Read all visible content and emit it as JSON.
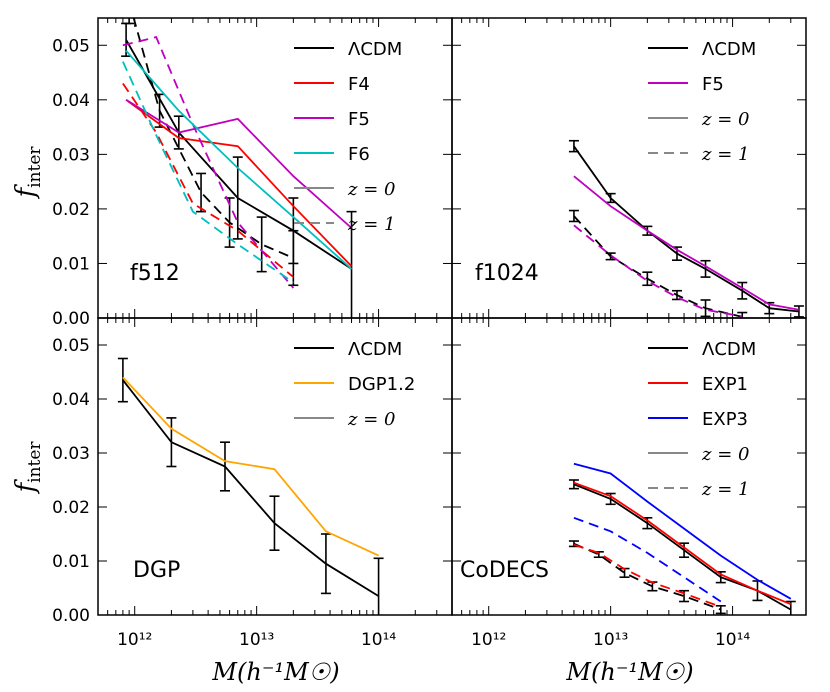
{
  "colors": {
    "LCDM": "#000000",
    "F4": "#ff0000",
    "F5": "#bf00bf",
    "F6": "#00bfbf",
    "DGP1.2": "#ffa500",
    "EXP1": "#ff0000",
    "EXP3": "#0000ff",
    "ref": "#888888"
  },
  "axes": {
    "ylabel": "f_inter",
    "ylabel_main": "f",
    "ylabel_sub": "inter",
    "xlabel": "M(h⁻¹M☉)",
    "yticks": [
      "0.00",
      "0.01",
      "0.02",
      "0.03",
      "0.04",
      "0.05"
    ],
    "xticks": [
      "10¹²",
      "10¹³",
      "10¹⁴"
    ]
  },
  "chart_data": [
    {
      "type": "line",
      "panel_label": "f512",
      "xscale": "log",
      "xlim": [
        500000000000.0,
        400000000000000.0
      ],
      "ylim": [
        0,
        0.055
      ],
      "legend_position": "top-right",
      "legend": [
        {
          "key": "LCDM",
          "label": "ΛCDM",
          "style": "solid"
        },
        {
          "key": "F4",
          "label": "F4",
          "style": "solid"
        },
        {
          "key": "F5",
          "label": "F5",
          "style": "solid"
        },
        {
          "key": "F6",
          "label": "F6",
          "style": "solid"
        },
        {
          "key": "ref",
          "label": "z = 0",
          "style": "solid",
          "math": true
        },
        {
          "key": "ref",
          "label": "z = 1",
          "style": "dashed",
          "math": true
        }
      ],
      "series": [
        {
          "name": "ΛCDM z=0",
          "key": "LCDM",
          "style": "solid",
          "x": [
            850000000000.0,
            2300000000000.0,
            7000000000000.0,
            20000000000000.0,
            60000000000000.0
          ],
          "y": [
            0.051,
            0.034,
            0.022,
            0.016,
            0.009
          ],
          "err": [
            0.003,
            0.003,
            0.0075,
            0.006,
            0.0105
          ]
        },
        {
          "name": "ΛCDM z=1",
          "key": "LCDM",
          "style": "dashed",
          "x": [
            900000000000.0,
            1600000000000.0,
            3500000000000.0,
            6000000000000.0,
            11000000000000.0,
            20000000000000.0
          ],
          "y": [
            0.058,
            0.038,
            0.023,
            0.0175,
            0.0135,
            0.011
          ],
          "err": [
            0.004,
            0.003,
            0.0035,
            0.0045,
            0.005,
            0.005
          ]
        },
        {
          "name": "F4 z=0",
          "key": "F4",
          "style": "solid",
          "x": [
            850000000000.0,
            2300000000000.0,
            7000000000000.0,
            20000000000000.0,
            60000000000000.0
          ],
          "y": [
            0.04,
            0.033,
            0.0315,
            0.0205,
            0.0095
          ]
        },
        {
          "name": "F4 z=1",
          "key": "F4",
          "style": "dashed",
          "x": [
            800000000000.0,
            1500000000000.0,
            3000000000000.0,
            7000000000000.0,
            20000000000000.0
          ],
          "y": [
            0.043,
            0.034,
            0.021,
            0.016,
            0.0075
          ]
        },
        {
          "name": "F5 z=0",
          "key": "F5",
          "style": "solid",
          "x": [
            850000000000.0,
            2300000000000.0,
            7000000000000.0,
            20000000000000.0,
            60000000000000.0
          ],
          "y": [
            0.04,
            0.034,
            0.0365,
            0.026,
            0.0165
          ]
        },
        {
          "name": "F5 z=1",
          "key": "F5",
          "style": "dashed",
          "x": [
            800000000000.0,
            1500000000000.0,
            3000000000000.0,
            7000000000000.0,
            20000000000000.0
          ],
          "y": [
            0.05,
            0.0515,
            0.0355,
            0.0175,
            0.0055
          ]
        },
        {
          "name": "F6 z=0",
          "key": "F6",
          "style": "solid",
          "x": [
            850000000000.0,
            2300000000000.0,
            7000000000000.0,
            20000000000000.0,
            60000000000000.0
          ],
          "y": [
            0.049,
            0.038,
            0.0275,
            0.0185,
            0.009
          ]
        },
        {
          "name": "F6 z=1",
          "key": "F6",
          "style": "dashed",
          "x": [
            800000000000.0,
            1500000000000.0,
            3000000000000.0,
            7000000000000.0,
            20000000000000.0
          ],
          "y": [
            0.047,
            0.0335,
            0.0195,
            0.0135,
            0.0065
          ]
        }
      ]
    },
    {
      "type": "line",
      "panel_label": "f1024",
      "xscale": "log",
      "xlim": [
        500000000000.0,
        400000000000000.0
      ],
      "ylim": [
        0,
        0.055
      ],
      "legend_position": "top-right",
      "legend": [
        {
          "key": "LCDM",
          "label": "ΛCDM",
          "style": "solid"
        },
        {
          "key": "F5",
          "label": "F5",
          "style": "solid"
        },
        {
          "key": "ref",
          "label": "z = 0",
          "style": "solid",
          "math": true
        },
        {
          "key": "ref",
          "label": "z = 1",
          "style": "dashed",
          "math": true
        }
      ],
      "series": [
        {
          "name": "ΛCDM z=0",
          "key": "LCDM",
          "style": "solid",
          "x": [
            5000000000000.0,
            10000000000000.0,
            20000000000000.0,
            35000000000000.0,
            60000000000000.0,
            120000000000000.0,
            200000000000000.0,
            350000000000000.0
          ],
          "y": [
            0.0315,
            0.022,
            0.016,
            0.0118,
            0.009,
            0.005,
            0.0018,
            0.0012
          ],
          "err": [
            0.001,
            0.0008,
            0.0008,
            0.0012,
            0.0015,
            0.0015,
            0.001,
            0.001
          ]
        },
        {
          "name": "ΛCDM z=1",
          "key": "LCDM",
          "style": "dashed",
          "x": [
            5000000000000.0,
            10000000000000.0,
            20000000000000.0,
            35000000000000.0,
            60000000000000.0,
            120000000000000.0
          ],
          "y": [
            0.0187,
            0.0113,
            0.0072,
            0.0042,
            0.0018,
            0.0002
          ],
          "err": [
            0.001,
            0.0006,
            0.0012,
            0.0008,
            0.0015,
            0.0008
          ]
        },
        {
          "name": "F5 z=0",
          "key": "F5",
          "style": "solid",
          "x": [
            5000000000000.0,
            10000000000000.0,
            20000000000000.0,
            35000000000000.0,
            60000000000000.0,
            120000000000000.0,
            200000000000000.0,
            350000000000000.0
          ],
          "y": [
            0.026,
            0.0205,
            0.016,
            0.0125,
            0.0095,
            0.0055,
            0.0025,
            0.0015
          ]
        },
        {
          "name": "F5 z=1",
          "key": "F5",
          "style": "dashed",
          "x": [
            5000000000000.0,
            10000000000000.0,
            20000000000000.0,
            35000000000000.0,
            60000000000000.0,
            120000000000000.0
          ],
          "y": [
            0.017,
            0.0115,
            0.0068,
            0.0038,
            0.0015,
            0.0003
          ]
        }
      ]
    },
    {
      "type": "line",
      "panel_label": "DGP",
      "xscale": "log",
      "xlim": [
        500000000000.0,
        400000000000000.0
      ],
      "ylim": [
        0,
        0.055
      ],
      "legend_position": "top-right",
      "legend": [
        {
          "key": "LCDM",
          "label": "ΛCDM",
          "style": "solid"
        },
        {
          "key": "DGP1.2",
          "label": "DGP1.2",
          "style": "solid"
        },
        {
          "key": "ref",
          "label": "z = 0",
          "style": "solid",
          "math": true
        }
      ],
      "series": [
        {
          "name": "ΛCDM z=0",
          "key": "LCDM",
          "style": "solid",
          "x": [
            800000000000.0,
            2000000000000.0,
            5500000000000.0,
            14000000000000.0,
            37000000000000.0,
            100000000000000.0
          ],
          "y": [
            0.0435,
            0.032,
            0.0275,
            0.017,
            0.0095,
            0.0035
          ],
          "err": [
            0.004,
            0.0045,
            0.0045,
            0.005,
            0.0055,
            0.007
          ]
        },
        {
          "name": "DGP1.2 z=0",
          "key": "DGP1.2",
          "style": "solid",
          "x": [
            800000000000.0,
            2000000000000.0,
            5500000000000.0,
            14000000000000.0,
            37000000000000.0,
            100000000000000.0
          ],
          "y": [
            0.044,
            0.0345,
            0.0285,
            0.027,
            0.0155,
            0.011
          ]
        }
      ]
    },
    {
      "type": "line",
      "panel_label": "CoDECS",
      "xscale": "log",
      "xlim": [
        500000000000.0,
        400000000000000.0
      ],
      "ylim": [
        0,
        0.055
      ],
      "legend_position": "top-right",
      "legend": [
        {
          "key": "LCDM",
          "label": "ΛCDM",
          "style": "solid"
        },
        {
          "key": "EXP1",
          "label": "EXP1",
          "style": "solid"
        },
        {
          "key": "EXP3",
          "label": "EXP3",
          "style": "solid"
        },
        {
          "key": "ref",
          "label": "z = 0",
          "style": "solid",
          "math": true
        },
        {
          "key": "ref",
          "label": "z = 1",
          "style": "dashed",
          "math": true
        }
      ],
      "series": [
        {
          "name": "ΛCDM z=0",
          "key": "LCDM",
          "style": "solid",
          "x": [
            5000000000000.0,
            10000000000000.0,
            20000000000000.0,
            40000000000000.0,
            80000000000000.0,
            160000000000000.0,
            300000000000000.0
          ],
          "y": [
            0.0242,
            0.0215,
            0.017,
            0.012,
            0.007,
            0.0045,
            0.001
          ],
          "err": [
            0.0008,
            0.001,
            0.001,
            0.0013,
            0.001,
            0.0018,
            0.0015
          ]
        },
        {
          "name": "ΛCDM z=1",
          "key": "LCDM",
          "style": "dashed",
          "x": [
            5000000000000.0,
            8000000000000.0,
            13000000000000.0,
            22000000000000.0,
            40000000000000.0,
            80000000000000.0
          ],
          "y": [
            0.0132,
            0.0112,
            0.0078,
            0.0053,
            0.0035,
            0.001
          ],
          "err": [
            0.0005,
            0.0005,
            0.0008,
            0.0008,
            0.001,
            0.0007
          ]
        },
        {
          "name": "EXP1 z=0",
          "key": "EXP1",
          "style": "solid",
          "x": [
            5000000000000.0,
            10000000000000.0,
            20000000000000.0,
            40000000000000.0,
            80000000000000.0,
            160000000000000.0,
            300000000000000.0
          ],
          "y": [
            0.0245,
            0.022,
            0.0175,
            0.0125,
            0.0075,
            0.0045,
            0.002
          ]
        },
        {
          "name": "EXP1 z=1",
          "key": "EXP1",
          "style": "dashed",
          "x": [
            5000000000000.0,
            8000000000000.0,
            13000000000000.0,
            22000000000000.0,
            40000000000000.0,
            80000000000000.0
          ],
          "y": [
            0.013,
            0.0115,
            0.0085,
            0.006,
            0.004,
            0.0015
          ]
        },
        {
          "name": "EXP3 z=0",
          "key": "EXP3",
          "style": "solid",
          "x": [
            5000000000000.0,
            10000000000000.0,
            20000000000000.0,
            40000000000000.0,
            80000000000000.0,
            160000000000000.0,
            300000000000000.0
          ],
          "y": [
            0.028,
            0.0262,
            0.021,
            0.016,
            0.011,
            0.0065,
            0.003
          ]
        },
        {
          "name": "EXP3 z=1",
          "key": "EXP3",
          "style": "dashed",
          "x": [
            5000000000000.0,
            10000000000000.0,
            20000000000000.0,
            40000000000000.0,
            80000000000000.0
          ],
          "y": [
            0.018,
            0.0155,
            0.0115,
            0.007,
            0.0025
          ]
        }
      ]
    }
  ]
}
